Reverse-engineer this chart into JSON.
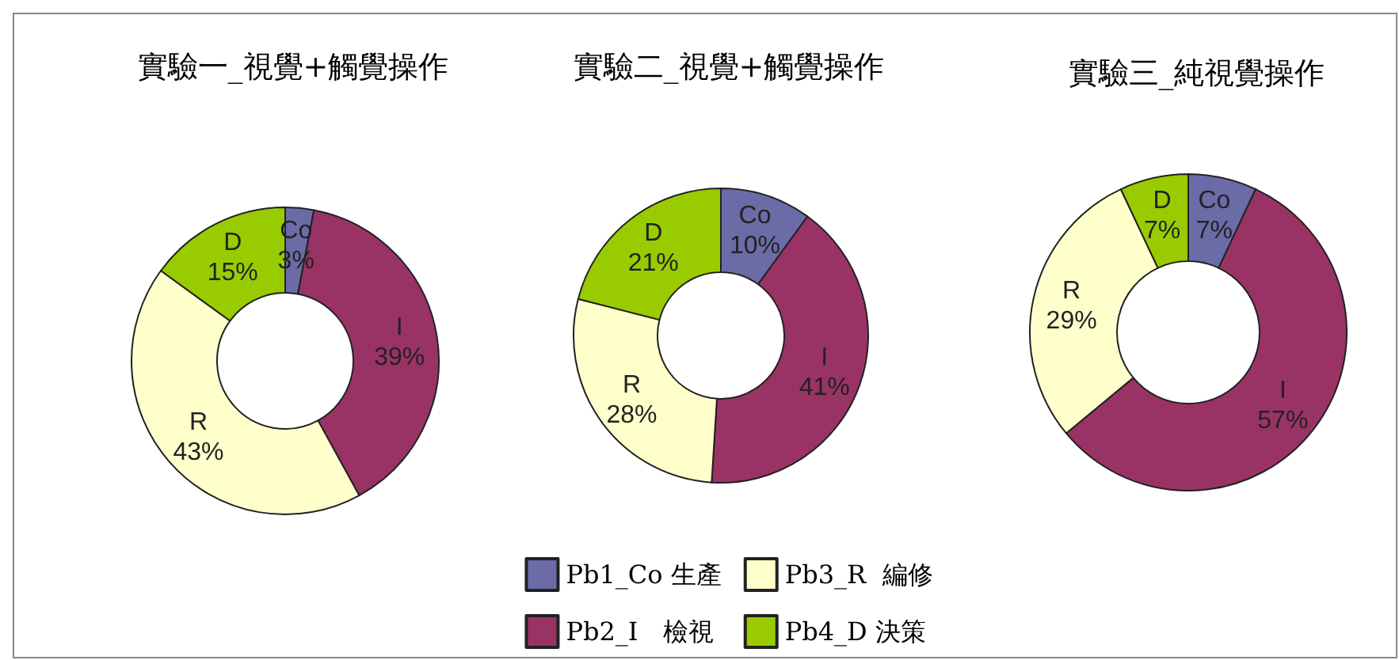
{
  "chart_data": [
    {
      "type": "donut",
      "title": "實驗一_視覺+觸覺操作",
      "categories": [
        "Co",
        "I",
        "R",
        "D"
      ],
      "values": [
        3,
        39,
        43,
        15
      ],
      "colors": [
        "#6b6ba8",
        "#993366",
        "#ffffcc",
        "#99cc00"
      ],
      "value_labels": [
        "3%",
        "39%",
        "43%",
        "15%"
      ]
    },
    {
      "type": "donut",
      "title": "實驗二_視覺+觸覺操作",
      "categories": [
        "Pb1_Co 生產",
        "Pb2_I　檢視",
        "Pb3_R  編修",
        "Pb4_D 決策"
      ],
      "values": [
        10,
        41,
        28,
        21
      ],
      "colors": [
        "#6b6ba8",
        "#993366",
        "#ffffcc",
        "#99cc00"
      ],
      "value_labels": [
        "Co\n10%",
        "I\n41%",
        "R\n28%",
        "D\n21%"
      ],
      "legend": "bottom"
    },
    {
      "type": "donut",
      "title": "實驗三_純視覺操作",
      "categories": [
        "Co",
        "I",
        "R",
        "D"
      ],
      "values": [
        7,
        57,
        29,
        7
      ],
      "colors": [
        "#6b6ba8",
        "#993366",
        "#ffffcc",
        "#99cc00"
      ],
      "value_labels": [
        "7%",
        "57%",
        "29%",
        "7%"
      ]
    }
  ]
}
